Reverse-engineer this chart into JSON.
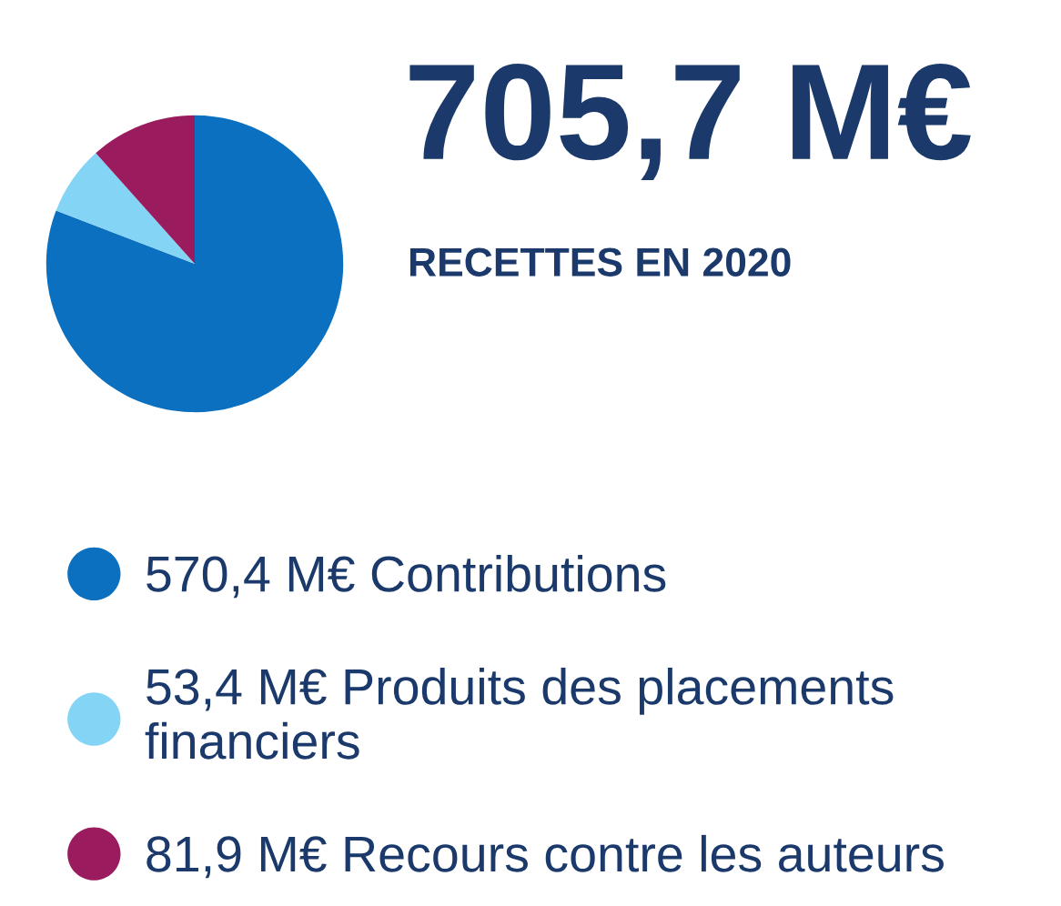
{
  "chart_data": {
    "type": "pie",
    "title": "705,7 M€",
    "subtitle": "RECETTES EN 2020",
    "categories": [
      "Contributions",
      "Produits des placements financiers",
      "Recours contre les auteurs"
    ],
    "values": [
      570.4,
      53.4,
      81.9
    ],
    "value_labels": [
      "570,4 M€",
      "53,4 M€",
      "81,9 M€"
    ],
    "colors": [
      "#0a70bf",
      "#84d4f6",
      "#9a1b5e"
    ],
    "legend": "bottom"
  }
}
